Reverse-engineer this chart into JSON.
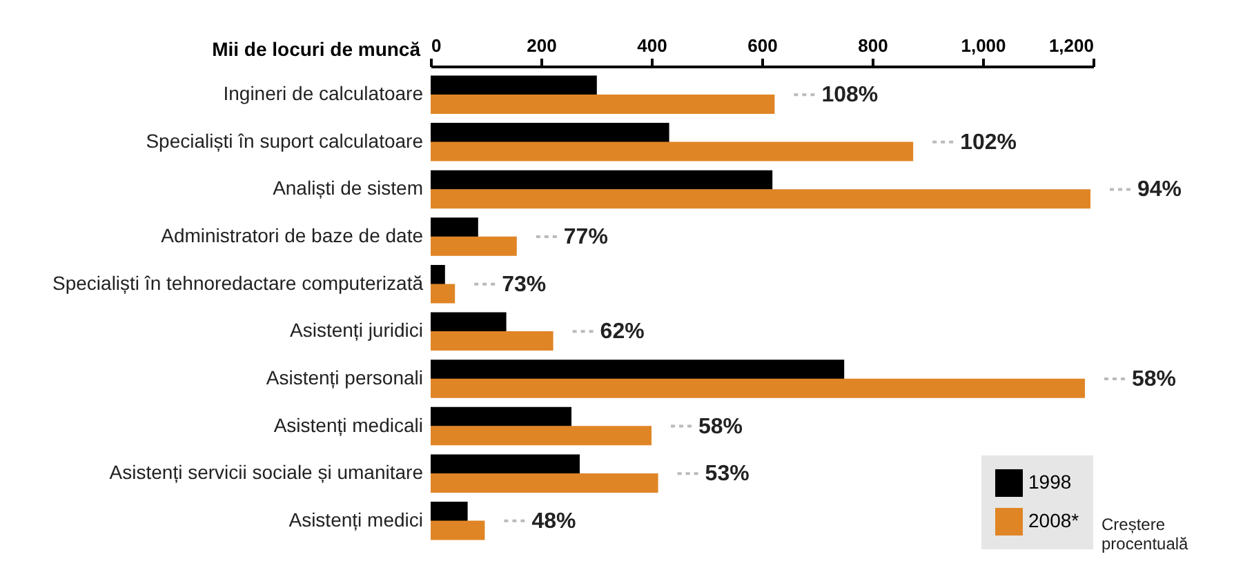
{
  "chart_data": {
    "type": "bar",
    "orientation": "horizontal",
    "xlabel": "Mii de locuri de muncă",
    "categories": [
      "Ingineri de calculatoare",
      "Specialiști în suport calculatoare",
      "Analiști de sistem",
      "Administratori de baze de date",
      "Specialiști în tehnoredactare computerizată",
      "Asistenți juridici",
      "Asistenți personali",
      "Asistenți medicali",
      "Asistenți servicii sociale și umanitare",
      "Asistenți medici"
    ],
    "series": [
      {
        "name": "1998",
        "color": "#000000",
        "values": [
          301,
          432,
          619,
          86,
          26,
          137,
          749,
          255,
          270,
          67
        ]
      },
      {
        "name": "2008*",
        "color": "#e08526",
        "values": [
          623,
          874,
          1195,
          156,
          44,
          222,
          1185,
          400,
          412,
          98
        ]
      }
    ],
    "xlim": [
      0,
      1200
    ],
    "xticks": [
      0,
      200,
      400,
      600,
      800,
      {
        "value": 1000,
        "label": "1,000"
      },
      {
        "value": 1200,
        "label": "1,200"
      }
    ],
    "annotations": [
      {
        "text": "108%",
        "x": 623,
        "y": "Ingineri de calculatoare"
      },
      {
        "text": "102%",
        "x": 874,
        "y": "Specialiști în suport calculatoare"
      },
      {
        "text": "94%",
        "x": 1195,
        "y": "Analiști de sistem"
      },
      {
        "text": "77%",
        "x": 156,
        "y": "Administratori de baze de date"
      },
      {
        "text": "73%",
        "x": 44,
        "y": "Specialiști în tehnoredactare computerizată"
      },
      {
        "text": "62%",
        "x": 222,
        "y": "Asistenți juridici"
      },
      {
        "text": "58%",
        "x": 1185,
        "y": "Asistenți personali"
      },
      {
        "text": "58%",
        "x": 400,
        "y": "Asistenți medicali"
      },
      {
        "text": "53%",
        "x": 412,
        "y": "Asistenți servicii sociale și umanitare"
      },
      {
        "text": "48%",
        "x": 98,
        "y": "Asistenți medici"
      },
      "Creștere procentuală"
    ],
    "legend": "bottom right",
    "grid": false
  }
}
